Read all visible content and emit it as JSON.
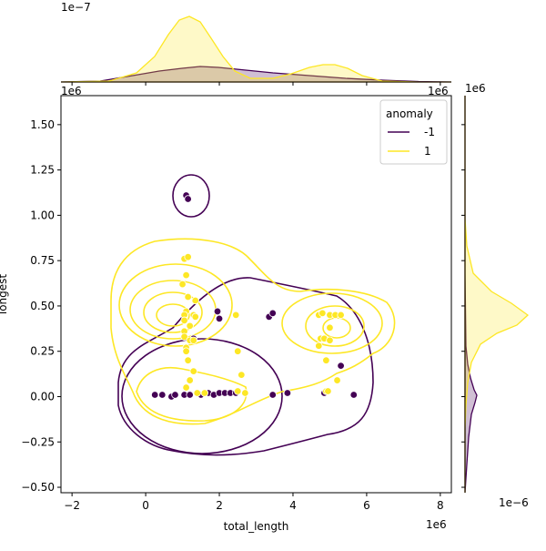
{
  "chart_data": {
    "type": "scatter",
    "title": "",
    "xlabel": "total_length",
    "ylabel": "longest",
    "x_offset_label": "1e6",
    "y_offset_label": "1e6",
    "xlim": [
      -2.3,
      8.3
    ],
    "ylim": [
      -0.53,
      1.66
    ],
    "xticks": [
      -2,
      0,
      2,
      4,
      6,
      8
    ],
    "xtick_labels": [
      "−2",
      "0",
      "2",
      "4",
      "6",
      "8"
    ],
    "yticks": [
      -0.5,
      -0.25,
      0,
      0.25,
      0.5,
      0.75,
      1.0,
      1.25,
      1.5
    ],
    "ytick_labels": [
      "−0.50",
      "−0.25",
      "0.00",
      "0.25",
      "0.50",
      "0.75",
      "1.00",
      "1.25",
      "1.50"
    ],
    "top_marginal_offset_label": "1e−7",
    "top_marginal_axis_offset_label": "1e6",
    "right_marginal_offset_label": "1e−6",
    "right_marginal_axis_offset_label": "1e6",
    "legend": {
      "title": "anomaly",
      "position": "top-right",
      "entries": [
        {
          "label": "-1",
          "color": "#440154"
        },
        {
          "label": "1",
          "color": "#fde725"
        }
      ]
    },
    "series": [
      {
        "name": "-1",
        "color": "#440154",
        "points": [
          [
            0.25,
            0.01
          ],
          [
            0.45,
            0.01
          ],
          [
            0.7,
            0.0
          ],
          [
            0.8,
            0.01
          ],
          [
            1.05,
            0.01
          ],
          [
            1.2,
            0.01
          ],
          [
            1.5,
            0.01
          ],
          [
            1.7,
            0.02
          ],
          [
            1.85,
            0.01
          ],
          [
            2.0,
            0.02
          ],
          [
            2.15,
            0.02
          ],
          [
            2.3,
            0.02
          ],
          [
            2.45,
            0.02
          ],
          [
            3.45,
            0.01
          ],
          [
            3.85,
            0.02
          ],
          [
            4.85,
            0.02
          ],
          [
            5.65,
            0.01
          ],
          [
            1.1,
            1.11
          ],
          [
            1.15,
            1.09
          ],
          [
            1.3,
            0.32
          ],
          [
            1.95,
            0.47
          ],
          [
            2.0,
            0.43
          ],
          [
            3.35,
            0.44
          ],
          [
            3.45,
            0.46
          ],
          [
            5.3,
            0.17
          ]
        ]
      },
      {
        "name": "1",
        "color": "#fde725",
        "points": [
          [
            1.05,
            0.76
          ],
          [
            1.15,
            0.77
          ],
          [
            1.1,
            0.67
          ],
          [
            1.0,
            0.62
          ],
          [
            1.15,
            0.55
          ],
          [
            1.35,
            0.53
          ],
          [
            1.1,
            0.47
          ],
          [
            1.05,
            0.45
          ],
          [
            1.3,
            0.45
          ],
          [
            1.35,
            0.44
          ],
          [
            1.05,
            0.42
          ],
          [
            1.2,
            0.39
          ],
          [
            1.05,
            0.36
          ],
          [
            1.05,
            0.33
          ],
          [
            1.2,
            0.31
          ],
          [
            1.3,
            0.31
          ],
          [
            1.1,
            0.27
          ],
          [
            1.1,
            0.25
          ],
          [
            1.15,
            0.2
          ],
          [
            1.3,
            0.14
          ],
          [
            1.2,
            0.09
          ],
          [
            1.1,
            0.05
          ],
          [
            1.4,
            0.02
          ],
          [
            1.6,
            0.02
          ],
          [
            2.45,
            0.45
          ],
          [
            2.5,
            0.25
          ],
          [
            2.6,
            0.12
          ],
          [
            2.5,
            0.03
          ],
          [
            2.7,
            0.02
          ],
          [
            4.7,
            0.45
          ],
          [
            4.8,
            0.46
          ],
          [
            5.0,
            0.45
          ],
          [
            5.15,
            0.45
          ],
          [
            5.3,
            0.45
          ],
          [
            5.0,
            0.38
          ],
          [
            4.75,
            0.32
          ],
          [
            4.85,
            0.32
          ],
          [
            5.0,
            0.31
          ],
          [
            4.7,
            0.28
          ],
          [
            4.9,
            0.2
          ],
          [
            5.2,
            0.09
          ],
          [
            4.9,
            0.03
          ],
          [
            4.95,
            0.03
          ]
        ]
      }
    ]
  }
}
